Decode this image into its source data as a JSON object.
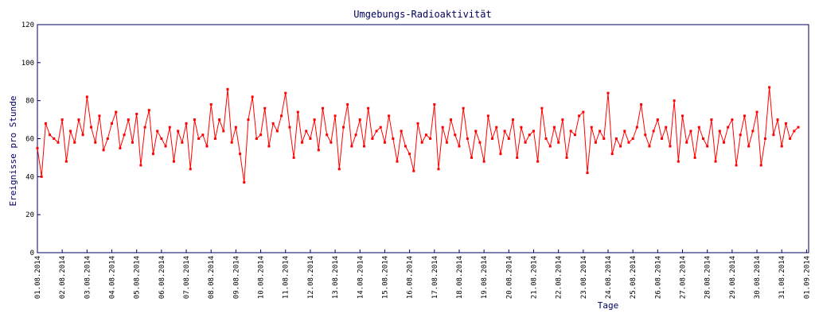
{
  "chart_data": {
    "type": "line",
    "title": "Umgebungs-Radioaktivität",
    "ylabel": "Ereignisse pro Stunde",
    "xlabel": "Tage",
    "color": "#ff0000",
    "ylim": [
      0,
      120
    ],
    "yticks": [
      0,
      20,
      40,
      60,
      80,
      100,
      120
    ],
    "xlim": [
      0,
      746
    ],
    "xticks": [
      {
        "value": 0,
        "label": "01.08.2014"
      },
      {
        "value": 24,
        "label": "02.08.2014"
      },
      {
        "value": 48,
        "label": "03.08.2014"
      },
      {
        "value": 72,
        "label": "04.08.2014"
      },
      {
        "value": 96,
        "label": "05.08.2014"
      },
      {
        "value": 120,
        "label": "06.08.2014"
      },
      {
        "value": 144,
        "label": "07.08.2014"
      },
      {
        "value": 168,
        "label": "08.08.2014"
      },
      {
        "value": 192,
        "label": "09.08.2014"
      },
      {
        "value": 216,
        "label": "10.08.2014"
      },
      {
        "value": 240,
        "label": "11.08.2014"
      },
      {
        "value": 264,
        "label": "12.08.2014"
      },
      {
        "value": 288,
        "label": "13.08.2014"
      },
      {
        "value": 312,
        "label": "14.08.2014"
      },
      {
        "value": 336,
        "label": "15.08.2014"
      },
      {
        "value": 360,
        "label": "16.08.2014"
      },
      {
        "value": 384,
        "label": "17.08.2014"
      },
      {
        "value": 408,
        "label": "18.08.2014"
      },
      {
        "value": 432,
        "label": "19.08.2014"
      },
      {
        "value": 456,
        "label": "20.08.2014"
      },
      {
        "value": 480,
        "label": "21.08.2014"
      },
      {
        "value": 504,
        "label": "22.08.2014"
      },
      {
        "value": 528,
        "label": "23.08.2014"
      },
      {
        "value": 552,
        "label": "24.08.2014"
      },
      {
        "value": 576,
        "label": "25.08.2014"
      },
      {
        "value": 600,
        "label": "26.08.2014"
      },
      {
        "value": 624,
        "label": "27.08.2014"
      },
      {
        "value": 648,
        "label": "28.08.2014"
      },
      {
        "value": 672,
        "label": "29.08.2014"
      },
      {
        "value": 696,
        "label": "30.08.2014"
      },
      {
        "value": 720,
        "label": "31.08.2014"
      },
      {
        "value": 744,
        "label": "01.09.2014"
      }
    ],
    "x": [
      0,
      4,
      8,
      12,
      16,
      20,
      24,
      28,
      32,
      36,
      40,
      44,
      48,
      52,
      56,
      60,
      64,
      68,
      72,
      76,
      80,
      84,
      88,
      92,
      96,
      100,
      104,
      108,
      112,
      116,
      120,
      124,
      128,
      132,
      136,
      140,
      144,
      148,
      152,
      156,
      160,
      164,
      168,
      172,
      176,
      180,
      184,
      188,
      192,
      196,
      200,
      204,
      208,
      212,
      216,
      220,
      224,
      228,
      232,
      236,
      240,
      244,
      248,
      252,
      256,
      260,
      264,
      268,
      272,
      276,
      280,
      284,
      288,
      292,
      296,
      300,
      304,
      308,
      312,
      316,
      320,
      324,
      328,
      332,
      336,
      340,
      344,
      348,
      352,
      356,
      360,
      364,
      368,
      372,
      376,
      380,
      384,
      388,
      392,
      396,
      400,
      404,
      408,
      412,
      416,
      420,
      424,
      428,
      432,
      436,
      440,
      444,
      448,
      452,
      456,
      460,
      464,
      468,
      472,
      476,
      480,
      484,
      488,
      492,
      496,
      500,
      504,
      508,
      512,
      516,
      520,
      524,
      528,
      532,
      536,
      540,
      544,
      548,
      552,
      556,
      560,
      564,
      568,
      572,
      576,
      580,
      584,
      588,
      592,
      596,
      600,
      604,
      608,
      612,
      616,
      620,
      624,
      628,
      632,
      636,
      640,
      644,
      648,
      652,
      656,
      660,
      664,
      668,
      672,
      676,
      680,
      684,
      688,
      692,
      696,
      700,
      704,
      708,
      712,
      716,
      720,
      724,
      728,
      732,
      736
    ],
    "values": [
      55,
      40,
      68,
      62,
      60,
      58,
      70,
      48,
      64,
      58,
      70,
      62,
      82,
      66,
      58,
      72,
      54,
      60,
      68,
      74,
      55,
      62,
      70,
      58,
      73,
      46,
      66,
      75,
      52,
      64,
      60,
      56,
      66,
      48,
      64,
      58,
      68,
      44,
      70,
      60,
      62,
      56,
      78,
      60,
      70,
      64,
      86,
      58,
      66,
      52,
      37,
      70,
      82,
      60,
      62,
      76,
      56,
      68,
      64,
      72,
      84,
      66,
      50,
      74,
      58,
      64,
      60,
      70,
      54,
      76,
      62,
      58,
      72,
      44,
      66,
      78,
      56,
      62,
      70,
      56,
      76,
      60,
      64,
      66,
      58,
      72,
      60,
      48,
      64,
      56,
      52,
      43,
      68,
      58,
      62,
      60,
      78,
      44,
      66,
      58,
      70,
      62,
      56,
      76,
      60,
      50,
      64,
      58,
      48,
      72,
      60,
      66,
      52,
      64,
      60,
      70,
      50,
      66,
      58,
      62,
      64,
      48,
      76,
      60,
      56,
      66,
      58,
      70,
      50,
      64,
      62,
      72,
      74,
      42,
      66,
      58,
      64,
      60,
      84,
      52,
      60,
      56,
      64,
      58,
      60,
      66,
      78,
      62,
      56,
      64,
      70,
      60,
      66,
      56,
      80,
      48,
      72,
      58,
      64,
      50,
      66,
      60,
      56,
      70,
      48,
      64,
      58,
      66,
      70,
      46,
      62,
      72,
      56,
      64,
      74,
      46,
      60,
      87,
      62,
      70,
      56,
      68,
      60,
      64,
      66
    ]
  }
}
